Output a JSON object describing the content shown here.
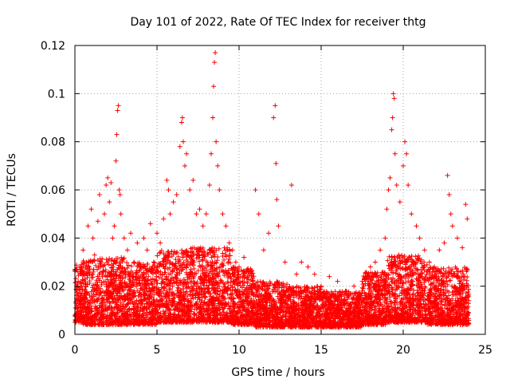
{
  "chart_data": {
    "type": "scatter",
    "title": "Day 101 of 2022, Rate Of TEC Index for receiver thtg",
    "xlabel": "GPS time / hours",
    "ylabel": "ROTI / TECUs",
    "xlim": [
      0,
      25
    ],
    "ylim": [
      0,
      0.12
    ],
    "x_ticks": [
      0,
      5,
      10,
      15,
      20,
      25
    ],
    "x_tick_labels": [
      "0",
      "5",
      "10",
      "15",
      "20",
      "25"
    ],
    "y_ticks": [
      0,
      0.02,
      0.04,
      0.06,
      0.08,
      0.1,
      0.12
    ],
    "y_tick_labels": [
      "0",
      "0.02",
      "0.04",
      "0.06",
      "0.08",
      "0.1",
      "0.12"
    ],
    "grid": true,
    "marker": "plus",
    "color": "#ff0000",
    "series": [
      {
        "points": [
          [
            0.1,
            0.015
          ],
          [
            0.2,
            0.022
          ],
          [
            0.3,
            0.028
          ],
          [
            0.4,
            0.02
          ],
          [
            0.5,
            0.035
          ],
          [
            0.6,
            0.018
          ],
          [
            0.7,
            0.03
          ],
          [
            0.8,
            0.045
          ],
          [
            0.9,
            0.025
          ],
          [
            1.0,
            0.052
          ],
          [
            1.1,
            0.04
          ],
          [
            1.2,
            0.033
          ],
          [
            1.4,
            0.047
          ],
          [
            1.5,
            0.058
          ],
          [
            1.6,
            0.03
          ],
          [
            1.8,
            0.05
          ],
          [
            1.9,
            0.062
          ],
          [
            2.0,
            0.065
          ],
          [
            2.1,
            0.055
          ],
          [
            2.2,
            0.063
          ],
          [
            2.3,
            0.04
          ],
          [
            2.4,
            0.045
          ],
          [
            2.5,
            0.072
          ],
          [
            2.55,
            0.083
          ],
          [
            2.6,
            0.093
          ],
          [
            2.65,
            0.095
          ],
          [
            2.7,
            0.06
          ],
          [
            2.75,
            0.058
          ],
          [
            2.8,
            0.05
          ],
          [
            3.0,
            0.04
          ],
          [
            3.2,
            0.035
          ],
          [
            3.4,
            0.042
          ],
          [
            3.6,
            0.03
          ],
          [
            3.8,
            0.038
          ],
          [
            4.0,
            0.028
          ],
          [
            4.2,
            0.04
          ],
          [
            4.4,
            0.035
          ],
          [
            4.6,
            0.046
          ],
          [
            4.8,
            0.03
          ],
          [
            5.0,
            0.042
          ],
          [
            5.2,
            0.038
          ],
          [
            5.4,
            0.048
          ],
          [
            5.6,
            0.064
          ],
          [
            5.7,
            0.06
          ],
          [
            5.8,
            0.05
          ],
          [
            6.0,
            0.055
          ],
          [
            6.2,
            0.058
          ],
          [
            6.4,
            0.078
          ],
          [
            6.5,
            0.088
          ],
          [
            6.55,
            0.09
          ],
          [
            6.6,
            0.08
          ],
          [
            6.7,
            0.07
          ],
          [
            6.8,
            0.075
          ],
          [
            7.0,
            0.06
          ],
          [
            7.2,
            0.064
          ],
          [
            7.4,
            0.05
          ],
          [
            7.6,
            0.052
          ],
          [
            7.8,
            0.045
          ],
          [
            8.0,
            0.05
          ],
          [
            8.2,
            0.062
          ],
          [
            8.3,
            0.075
          ],
          [
            8.4,
            0.09
          ],
          [
            8.45,
            0.103
          ],
          [
            8.5,
            0.113
          ],
          [
            8.55,
            0.117
          ],
          [
            8.6,
            0.08
          ],
          [
            8.7,
            0.07
          ],
          [
            8.8,
            0.06
          ],
          [
            9.0,
            0.05
          ],
          [
            9.2,
            0.045
          ],
          [
            9.4,
            0.038
          ],
          [
            9.6,
            0.035
          ],
          [
            9.8,
            0.03
          ],
          [
            10.0,
            0.028
          ],
          [
            10.3,
            0.032
          ],
          [
            10.6,
            0.025
          ],
          [
            11.0,
            0.06
          ],
          [
            11.2,
            0.05
          ],
          [
            11.5,
            0.035
          ],
          [
            11.8,
            0.042
          ],
          [
            12.1,
            0.09
          ],
          [
            12.2,
            0.095
          ],
          [
            12.25,
            0.071
          ],
          [
            12.3,
            0.056
          ],
          [
            12.4,
            0.045
          ],
          [
            12.8,
            0.03
          ],
          [
            13.2,
            0.062
          ],
          [
            13.5,
            0.025
          ],
          [
            13.8,
            0.03
          ],
          [
            14.2,
            0.028
          ],
          [
            14.6,
            0.025
          ],
          [
            15.0,
            0.02
          ],
          [
            15.5,
            0.024
          ],
          [
            16.0,
            0.022
          ],
          [
            16.5,
            0.018
          ],
          [
            17.0,
            0.02
          ],
          [
            17.5,
            0.022
          ],
          [
            17.8,
            0.025
          ],
          [
            18.0,
            0.028
          ],
          [
            18.3,
            0.03
          ],
          [
            18.6,
            0.035
          ],
          [
            18.9,
            0.04
          ],
          [
            19.0,
            0.052
          ],
          [
            19.1,
            0.06
          ],
          [
            19.2,
            0.065
          ],
          [
            19.3,
            0.085
          ],
          [
            19.35,
            0.09
          ],
          [
            19.4,
            0.1
          ],
          [
            19.45,
            0.098
          ],
          [
            19.5,
            0.075
          ],
          [
            19.6,
            0.062
          ],
          [
            19.8,
            0.055
          ],
          [
            20.0,
            0.07
          ],
          [
            20.1,
            0.08
          ],
          [
            20.2,
            0.075
          ],
          [
            20.3,
            0.062
          ],
          [
            20.5,
            0.05
          ],
          [
            20.8,
            0.045
          ],
          [
            21.0,
            0.04
          ],
          [
            21.3,
            0.035
          ],
          [
            21.6,
            0.03
          ],
          [
            21.9,
            0.028
          ],
          [
            22.2,
            0.035
          ],
          [
            22.5,
            0.038
          ],
          [
            22.7,
            0.066
          ],
          [
            22.8,
            0.058
          ],
          [
            22.9,
            0.05
          ],
          [
            23.0,
            0.045
          ],
          [
            23.3,
            0.04
          ],
          [
            23.6,
            0.036
          ],
          [
            23.8,
            0.054
          ],
          [
            23.9,
            0.048
          ]
        ]
      }
    ],
    "baseline_band": [
      {
        "x_from": 0,
        "x_to": 0.5,
        "low": 0.005,
        "high": 0.03
      },
      {
        "x_from": 0.5,
        "x_to": 3,
        "low": 0.004,
        "high": 0.032
      },
      {
        "x_from": 3,
        "x_to": 5,
        "low": 0.004,
        "high": 0.03
      },
      {
        "x_from": 5,
        "x_to": 7,
        "low": 0.005,
        "high": 0.035
      },
      {
        "x_from": 7,
        "x_to": 9.5,
        "low": 0.005,
        "high": 0.036
      },
      {
        "x_from": 9.5,
        "x_to": 11,
        "low": 0.004,
        "high": 0.028
      },
      {
        "x_from": 11,
        "x_to": 13,
        "low": 0.003,
        "high": 0.022
      },
      {
        "x_from": 13,
        "x_to": 15,
        "low": 0.003,
        "high": 0.02
      },
      {
        "x_from": 15,
        "x_to": 17.5,
        "low": 0.003,
        "high": 0.018
      },
      {
        "x_from": 17.5,
        "x_to": 19,
        "low": 0.004,
        "high": 0.026
      },
      {
        "x_from": 19,
        "x_to": 21.5,
        "low": 0.005,
        "high": 0.033
      },
      {
        "x_from": 21.5,
        "x_to": 24,
        "low": 0.004,
        "high": 0.028
      }
    ]
  }
}
